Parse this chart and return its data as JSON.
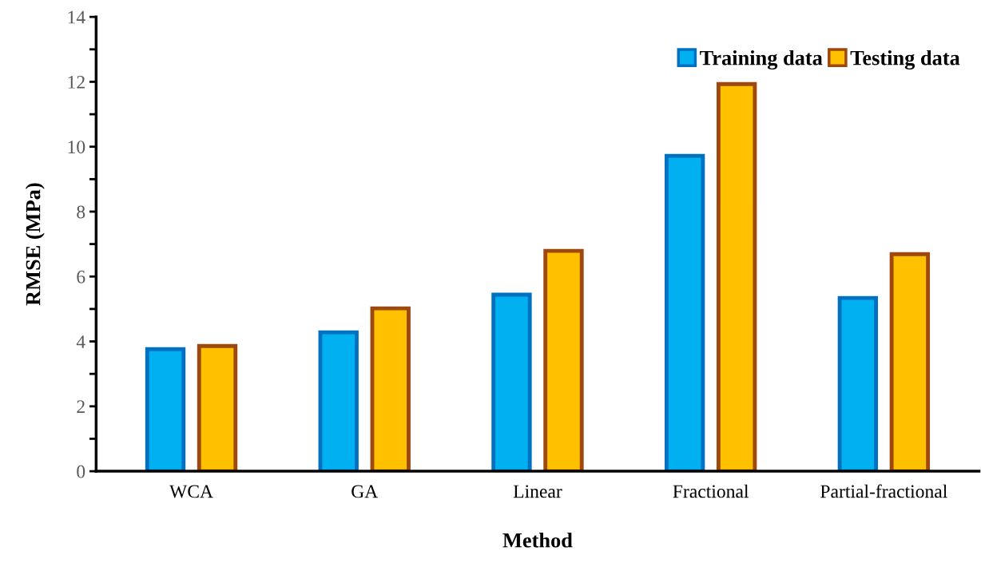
{
  "chart_data": {
    "type": "bar",
    "xlabel": "Method",
    "ylabel": "RMSE (MPa)",
    "categories": [
      "WCA",
      "GA",
      "Linear",
      "Fractional",
      "Partial-fractional"
    ],
    "series": [
      {
        "name": "Training data",
        "color": "#00b0f0",
        "values": [
          3.76,
          4.28,
          5.44,
          9.72,
          5.34
        ]
      },
      {
        "name": "Testing data",
        "color": "#ffc000",
        "values": [
          3.86,
          5.02,
          6.79,
          11.93,
          6.69
        ]
      }
    ],
    "ylim": [
      0,
      14
    ],
    "yticks": [
      0,
      {
        "value": 1,
        "label": null
      },
      2,
      {
        "value": 3,
        "label": null
      },
      4,
      {
        "value": 5,
        "label": null
      },
      6,
      {
        "value": 7,
        "label": null
      },
      8,
      {
        "value": 9,
        "label": null
      },
      10,
      {
        "value": 11,
        "label": null
      },
      12,
      {
        "value": 13,
        "label": null
      },
      14
    ],
    "grid": false,
    "legend": "top right"
  }
}
